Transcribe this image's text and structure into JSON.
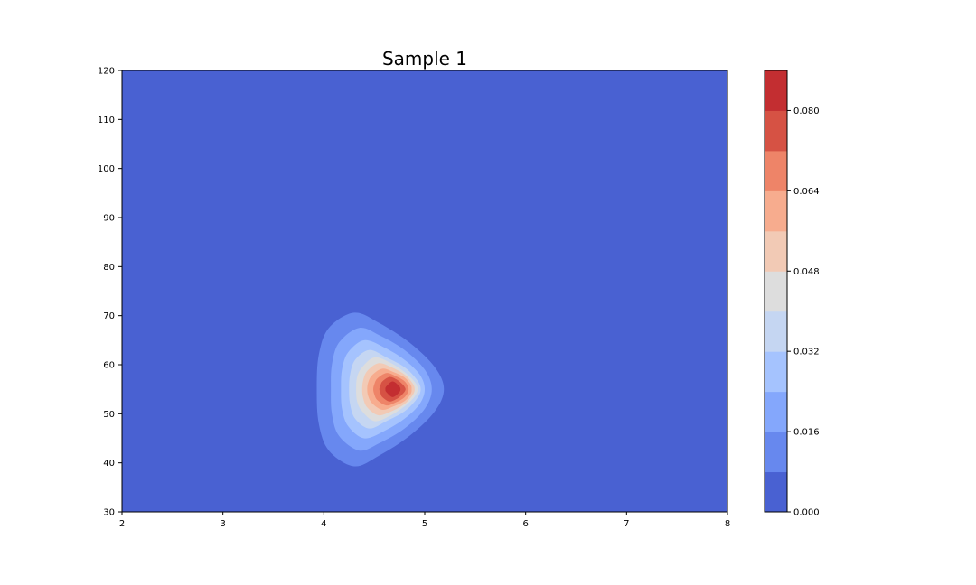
{
  "chart_data": {
    "type": "contourf",
    "title": "Sample 1",
    "xlabel": "",
    "ylabel": "",
    "xlim": [
      2,
      8
    ],
    "ylim": [
      30,
      120
    ],
    "x_ticks": [
      "2",
      "3",
      "4",
      "5",
      "6",
      "7",
      "8"
    ],
    "y_ticks": [
      "30",
      "40",
      "50",
      "60",
      "70",
      "80",
      "90",
      "100",
      "110",
      "120"
    ],
    "peak": {
      "x": 4.68,
      "y": 55
    },
    "contours": [
      {
        "level": 0.008,
        "color": "#6788ee",
        "points": [
          [
            4.3,
            70.6
          ],
          [
            4.05,
            67.5
          ],
          [
            3.95,
            62
          ],
          [
            3.93,
            55
          ],
          [
            3.95,
            48
          ],
          [
            4.05,
            42.5
          ],
          [
            4.3,
            39.3
          ],
          [
            4.55,
            41.5
          ],
          [
            4.85,
            45.5
          ],
          [
            5.1,
            50.5
          ],
          [
            5.19,
            55
          ],
          [
            5.1,
            59.5
          ],
          [
            4.85,
            64.5
          ],
          [
            4.55,
            68.5
          ]
        ]
      },
      {
        "level": 0.016,
        "color": "#84a7fc",
        "points": [
          [
            4.35,
            67.5
          ],
          [
            4.15,
            64.5
          ],
          [
            4.08,
            60
          ],
          [
            4.07,
            55
          ],
          [
            4.08,
            50
          ],
          [
            4.15,
            45.5
          ],
          [
            4.35,
            42.5
          ],
          [
            4.55,
            44
          ],
          [
            4.8,
            47
          ],
          [
            5.0,
            51
          ],
          [
            5.07,
            55
          ],
          [
            5.0,
            59
          ],
          [
            4.8,
            63
          ],
          [
            4.55,
            66
          ]
        ]
      },
      {
        "level": 0.024,
        "color": "#a5c3fe",
        "points": [
          [
            4.4,
            65
          ],
          [
            4.24,
            62.5
          ],
          [
            4.18,
            59
          ],
          [
            4.17,
            55
          ],
          [
            4.18,
            51
          ],
          [
            4.24,
            47.5
          ],
          [
            4.4,
            45
          ],
          [
            4.6,
            46.5
          ],
          [
            4.8,
            49
          ],
          [
            4.95,
            52
          ],
          [
            5.0,
            55
          ],
          [
            4.95,
            58
          ],
          [
            4.8,
            61
          ],
          [
            4.6,
            63.5
          ]
        ]
      },
      {
        "level": 0.032,
        "color": "#c5d6f2",
        "points": [
          [
            4.45,
            63
          ],
          [
            4.31,
            61
          ],
          [
            4.26,
            58
          ],
          [
            4.25,
            55
          ],
          [
            4.26,
            52
          ],
          [
            4.31,
            49
          ],
          [
            4.45,
            47
          ],
          [
            4.62,
            48.5
          ],
          [
            4.8,
            50.5
          ],
          [
            4.92,
            53
          ],
          [
            4.96,
            55
          ],
          [
            4.92,
            57
          ],
          [
            4.8,
            59.5
          ],
          [
            4.62,
            61.5
          ]
        ]
      },
      {
        "level": 0.04,
        "color": "#dddddd",
        "points": [
          [
            4.5,
            61.5
          ],
          [
            4.38,
            59.5
          ],
          [
            4.33,
            57.5
          ],
          [
            4.32,
            55
          ],
          [
            4.33,
            52.5
          ],
          [
            4.38,
            50.5
          ],
          [
            4.5,
            48.5
          ],
          [
            4.65,
            49.5
          ],
          [
            4.8,
            51.5
          ],
          [
            4.9,
            53.5
          ],
          [
            4.93,
            55
          ],
          [
            4.9,
            56.5
          ],
          [
            4.8,
            58.5
          ],
          [
            4.65,
            60.5
          ]
        ]
      },
      {
        "level": 0.048,
        "color": "#f2cab5",
        "points": [
          [
            4.54,
            60.3
          ],
          [
            4.43,
            58.7
          ],
          [
            4.39,
            56.8
          ],
          [
            4.38,
            55
          ],
          [
            4.39,
            53.2
          ],
          [
            4.43,
            51.3
          ],
          [
            4.54,
            49.7
          ],
          [
            4.67,
            50.5
          ],
          [
            4.8,
            52
          ],
          [
            4.88,
            53.8
          ],
          [
            4.9,
            55
          ],
          [
            4.88,
            56.2
          ],
          [
            4.8,
            58
          ],
          [
            4.67,
            59.5
          ]
        ]
      },
      {
        "level": 0.056,
        "color": "#f7ac8e",
        "points": [
          [
            4.58,
            59.2
          ],
          [
            4.48,
            57.9
          ],
          [
            4.44,
            56.4
          ],
          [
            4.43,
            55
          ],
          [
            4.44,
            53.6
          ],
          [
            4.48,
            52.1
          ],
          [
            4.58,
            50.8
          ],
          [
            4.69,
            51.5
          ],
          [
            4.8,
            52.6
          ],
          [
            4.86,
            54
          ],
          [
            4.87,
            55
          ],
          [
            4.86,
            56
          ],
          [
            4.8,
            57.4
          ],
          [
            4.69,
            58.5
          ]
        ]
      },
      {
        "level": 0.064,
        "color": "#ee8468",
        "points": [
          [
            4.62,
            58.3
          ],
          [
            4.53,
            57.2
          ],
          [
            4.5,
            56
          ],
          [
            4.49,
            55
          ],
          [
            4.5,
            54
          ],
          [
            4.53,
            52.8
          ],
          [
            4.62,
            51.7
          ],
          [
            4.71,
            52.3
          ],
          [
            4.79,
            53.2
          ],
          [
            4.83,
            54.2
          ],
          [
            4.84,
            55
          ],
          [
            4.83,
            55.8
          ],
          [
            4.79,
            56.8
          ],
          [
            4.71,
            57.7
          ]
        ]
      },
      {
        "level": 0.072,
        "color": "#d65244",
        "points": [
          [
            4.65,
            57.5
          ],
          [
            4.58,
            56.6
          ],
          [
            4.56,
            55.7
          ],
          [
            4.55,
            55
          ],
          [
            4.56,
            54.3
          ],
          [
            4.58,
            53.4
          ],
          [
            4.65,
            52.5
          ],
          [
            4.72,
            53
          ],
          [
            4.77,
            53.8
          ],
          [
            4.8,
            54.5
          ],
          [
            4.81,
            55
          ],
          [
            4.8,
            55.5
          ],
          [
            4.77,
            56.2
          ],
          [
            4.72,
            57
          ]
        ]
      },
      {
        "level": 0.08,
        "color": "#c32e31",
        "points": [
          [
            4.68,
            56.6
          ],
          [
            4.62,
            55.6
          ],
          [
            4.61,
            55
          ],
          [
            4.62,
            54.4
          ],
          [
            4.68,
            53.4
          ],
          [
            4.74,
            54.2
          ],
          [
            4.76,
            55
          ],
          [
            4.74,
            55.8
          ]
        ]
      }
    ],
    "background_color": "#4961d2",
    "colorbar": {
      "min": 0.0,
      "max": 0.088,
      "bands": [
        {
          "from": 0.0,
          "to": 0.008,
          "color": "#4961d2"
        },
        {
          "from": 0.008,
          "to": 0.016,
          "color": "#6788ee"
        },
        {
          "from": 0.016,
          "to": 0.024,
          "color": "#84a7fc"
        },
        {
          "from": 0.024,
          "to": 0.032,
          "color": "#a5c3fe"
        },
        {
          "from": 0.032,
          "to": 0.04,
          "color": "#c5d6f2"
        },
        {
          "from": 0.04,
          "to": 0.048,
          "color": "#dddddd"
        },
        {
          "from": 0.048,
          "to": 0.056,
          "color": "#f2cab5"
        },
        {
          "from": 0.056,
          "to": 0.064,
          "color": "#f7ac8e"
        },
        {
          "from": 0.064,
          "to": 0.072,
          "color": "#ee8468"
        },
        {
          "from": 0.072,
          "to": 0.08,
          "color": "#d65244"
        },
        {
          "from": 0.08,
          "to": 0.088,
          "color": "#c32e31"
        }
      ],
      "ticks": [
        {
          "value": 0.0,
          "label": "0.000"
        },
        {
          "value": 0.016,
          "label": "0.016"
        },
        {
          "value": 0.032,
          "label": "0.032"
        },
        {
          "value": 0.048,
          "label": "0.048"
        },
        {
          "value": 0.064,
          "label": "0.064"
        },
        {
          "value": 0.08,
          "label": "0.080"
        }
      ]
    }
  }
}
